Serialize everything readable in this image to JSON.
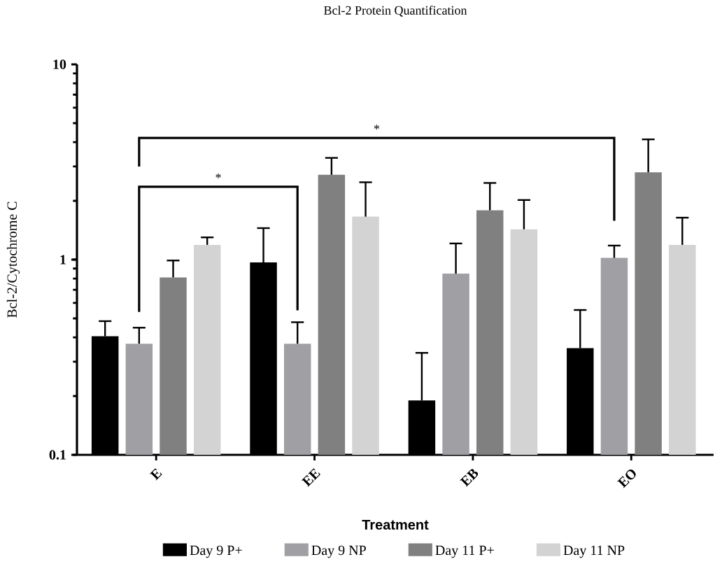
{
  "chart_data": {
    "type": "bar",
    "title": "Bcl-2 Protein Quantification",
    "xlabel": "Treatment",
    "ylabel": "Bcl-2/Cytochrome C",
    "categories": [
      "E",
      "EE",
      "EB",
      "EO"
    ],
    "series": [
      {
        "name": "Day 9 P+",
        "color": "#000000",
        "values": [
          0.405,
          0.967,
          0.19,
          0.352
        ],
        "errors": [
          [
            0.405,
            0.484
          ],
          [
            0.967,
            1.45
          ],
          [
            0.19,
            0.333
          ],
          [
            0.352,
            0.552
          ]
        ]
      },
      {
        "name": "Day 9 NP",
        "color": "#a0a0a4",
        "values": [
          0.371,
          0.371,
          0.848,
          1.02
        ],
        "errors": [
          [
            0.371,
            0.448
          ],
          [
            0.371,
            0.478
          ],
          [
            0.848,
            1.21
          ],
          [
            1.02,
            1.18
          ]
        ]
      },
      {
        "name": "Day 11 P+",
        "color": "#808080",
        "values": [
          0.811,
          2.72,
          1.79,
          2.8
        ],
        "errors": [
          [
            0.811,
            0.99
          ],
          [
            2.72,
            3.32
          ],
          [
            1.79,
            2.47
          ],
          [
            2.8,
            4.13
          ]
        ]
      },
      {
        "name": "Day 11 NP",
        "color": "#d3d3d3",
        "values": [
          1.19,
          1.66,
          1.43,
          1.19
        ],
        "errors": [
          [
            1.19,
            1.3
          ],
          [
            1.66,
            2.49
          ],
          [
            1.43,
            2.02
          ],
          [
            1.19,
            1.64
          ]
        ]
      }
    ],
    "log": true,
    "ylim": [
      0.1,
      10
    ],
    "yticks": [
      0.1,
      1,
      10
    ],
    "grid": false,
    "legend": "bottom",
    "annotations": [
      "*",
      "*"
    ]
  }
}
